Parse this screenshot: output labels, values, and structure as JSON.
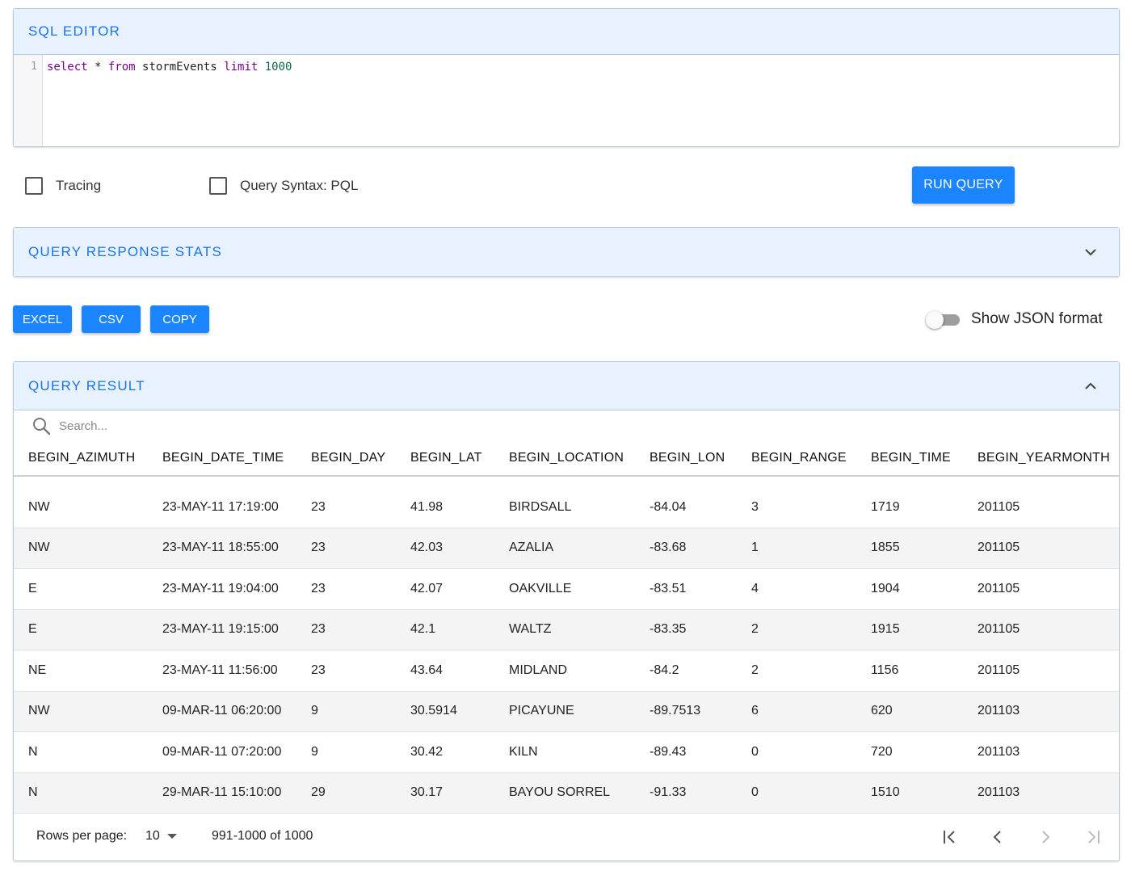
{
  "sql_editor": {
    "title": "SQL EDITOR",
    "line_number": "1",
    "tokens": {
      "select": "select",
      "star": " * ",
      "from": "from",
      "table": " stormEvents ",
      "limit": "limit",
      "count": " 1000"
    }
  },
  "options": {
    "tracing_label": "Tracing",
    "pql_label": "Query Syntax: PQL",
    "run_label": "RUN QUERY"
  },
  "stats_panel": {
    "title": "QUERY RESPONSE STATS"
  },
  "export": {
    "excel": "EXCEL",
    "csv": "CSV",
    "copy": "COPY"
  },
  "json_toggle": {
    "label": "Show JSON format",
    "on": false
  },
  "result_panel": {
    "title": "QUERY RESULT",
    "search_placeholder": "Search..."
  },
  "table": {
    "columns": [
      "BEGIN_AZIMUTH",
      "BEGIN_DATE_TIME",
      "BEGIN_DAY",
      "BEGIN_LAT",
      "BEGIN_LOCATION",
      "BEGIN_LON",
      "BEGIN_RANGE",
      "BEGIN_TIME",
      "BEGIN_YEARMONTH"
    ],
    "rows": [
      [
        "NW",
        "23-MAY-11 17:19:00",
        "23",
        "41.98",
        "BIRDSALL",
        "-84.04",
        "3",
        "1719",
        "201105"
      ],
      [
        "NW",
        "23-MAY-11 18:55:00",
        "23",
        "42.03",
        "AZALIA",
        "-83.68",
        "1",
        "1855",
        "201105"
      ],
      [
        "E",
        "23-MAY-11 19:04:00",
        "23",
        "42.07",
        "OAKVILLE",
        "-83.51",
        "4",
        "1904",
        "201105"
      ],
      [
        "E",
        "23-MAY-11 19:15:00",
        "23",
        "42.1",
        "WALTZ",
        "-83.35",
        "2",
        "1915",
        "201105"
      ],
      [
        "NE",
        "23-MAY-11 11:56:00",
        "23",
        "43.64",
        "MIDLAND",
        "-84.2",
        "2",
        "1156",
        "201105"
      ],
      [
        "NW",
        "09-MAR-11 06:20:00",
        "9",
        "30.5914",
        "PICAYUNE",
        "-89.7513",
        "6",
        "620",
        "201103"
      ],
      [
        "N",
        "09-MAR-11 07:20:00",
        "9",
        "30.42",
        "KILN",
        "-89.43",
        "0",
        "720",
        "201103"
      ],
      [
        "N",
        "29-MAR-11 15:10:00",
        "29",
        "30.17",
        "BAYOU SORREL",
        "-91.33",
        "0",
        "1510",
        "201103"
      ]
    ]
  },
  "pagination": {
    "rows_per_page_label": "Rows per page:",
    "rows_per_page_value": "10",
    "range_text": "991-1000 of 1000"
  },
  "colors": {
    "accent": "#1a85ff",
    "header_bg": "#e8f2fe",
    "header_text": "#1a73e8"
  }
}
